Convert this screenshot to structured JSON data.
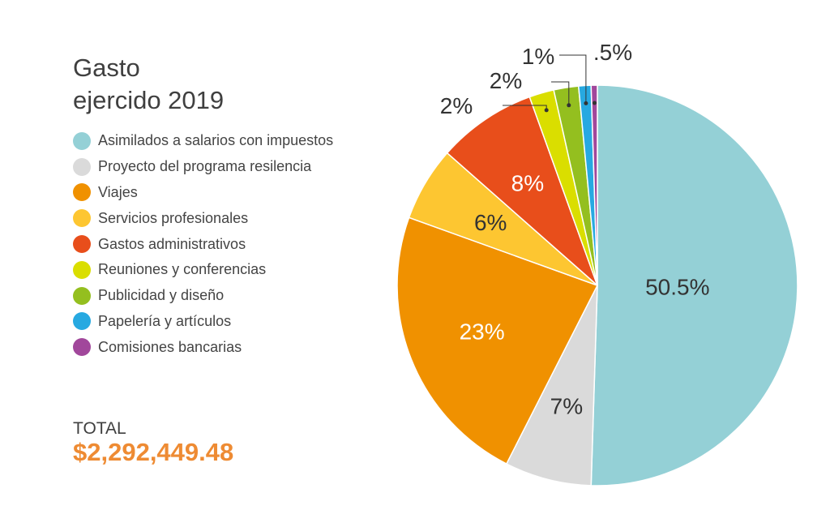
{
  "chart_data": {
    "type": "pie",
    "title_lines": [
      "Gasto",
      "ejercido 2019"
    ],
    "slices": [
      {
        "label": "Asimilados a salarios con impuestos",
        "value": 50.5,
        "display": "50.5%",
        "color": "#94d0d6",
        "text_color": "#333333"
      },
      {
        "label": "Proyecto del programa resilencia",
        "value": 7,
        "display": "7%",
        "color": "#dadada",
        "text_color": "#333333"
      },
      {
        "label": "Viajes",
        "value": 23,
        "display": "23%",
        "color": "#f09100",
        "text_color": "#ffffff"
      },
      {
        "label": "Servicios profesionales",
        "value": 6,
        "display": "6%",
        "color": "#fdc631",
        "text_color": "#333333"
      },
      {
        "label": "Gastos administrativos",
        "value": 8,
        "display": "8%",
        "color": "#e84e1b",
        "text_color": "#ffffff"
      },
      {
        "label": "Reuniones y conferencias",
        "value": 2,
        "display": "2%",
        "color": "#dade00",
        "text_color": "#333333"
      },
      {
        "label": "Publicidad y diseño",
        "value": 2,
        "display": "2%",
        "color": "#94bf1f",
        "text_color": "#333333"
      },
      {
        "label": "Papelería y artículos",
        "value": 1,
        "display": "1%",
        "color": "#27a9e1",
        "text_color": "#333333"
      },
      {
        "label": "Comisiones bancarias",
        "value": 0.5,
        "display": ".5%",
        "color": "#a1479b",
        "text_color": "#333333"
      }
    ],
    "legend_position": "left",
    "total_label": "TOTAL",
    "total_value": "$2,292,449.48",
    "total_color": "#ee8b33"
  }
}
